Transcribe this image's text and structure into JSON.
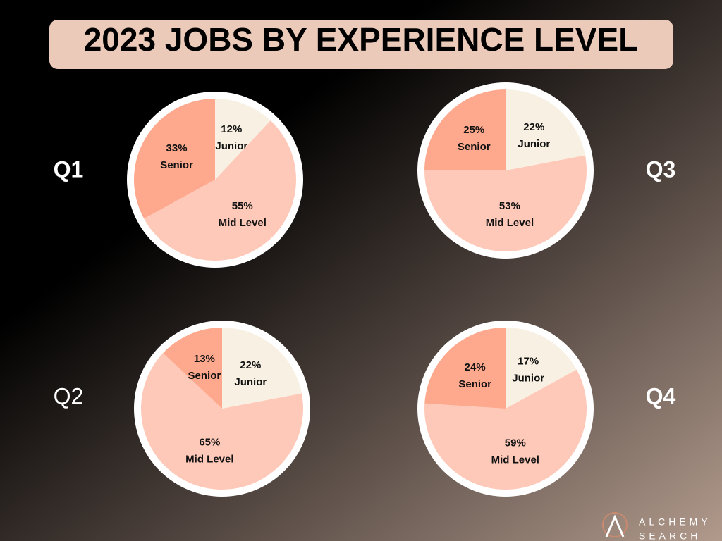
{
  "title": "2023 JOBS BY EXPERIENCE LEVEL",
  "logo": {
    "line1": "ALCHEMY",
    "line2": "SEARCH"
  },
  "chart_data": [
    {
      "type": "pie",
      "title": "Q1",
      "categories": [
        "Junior",
        "Mid Level",
        "Senior"
      ],
      "values": [
        12,
        55,
        33
      ],
      "value_labels": [
        "12%",
        "55%",
        "33%"
      ],
      "colors": [
        "#f8f1e3",
        "#fec9b8",
        "#fea98e"
      ]
    },
    {
      "type": "pie",
      "title": "Q2",
      "categories": [
        "Junior",
        "Mid Level",
        "Senior"
      ],
      "values": [
        22,
        65,
        13
      ],
      "value_labels": [
        "22%",
        "65%",
        "13%"
      ],
      "colors": [
        "#f8f1e3",
        "#fec9b8",
        "#fea98e"
      ]
    },
    {
      "type": "pie",
      "title": "Q3",
      "categories": [
        "Junior",
        "Mid Level",
        "Senior"
      ],
      "values": [
        22,
        53,
        25
      ],
      "value_labels": [
        "22%",
        "53%",
        "25%"
      ],
      "colors": [
        "#f8f1e3",
        "#fec9b8",
        "#fea98e"
      ]
    },
    {
      "type": "pie",
      "title": "Q4",
      "categories": [
        "Junior",
        "Mid Level",
        "Senior"
      ],
      "values": [
        17,
        59,
        24
      ],
      "value_labels": [
        "17%",
        "59%",
        "24%"
      ],
      "colors": [
        "#f8f1e3",
        "#fec9b8",
        "#fea98e"
      ]
    }
  ]
}
